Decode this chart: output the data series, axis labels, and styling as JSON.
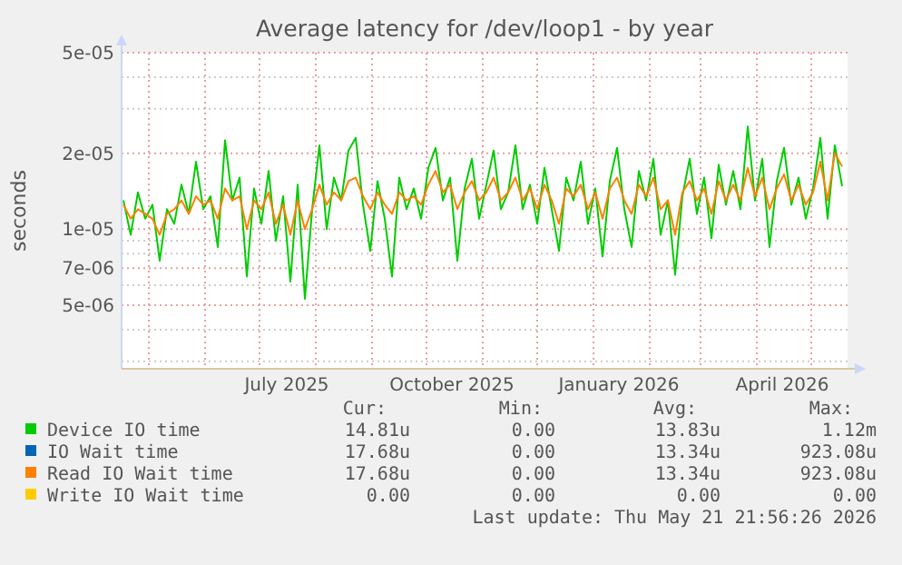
{
  "chart_data": {
    "type": "line",
    "title": "Average latency for /dev/loop1 - by year",
    "ylabel": "seconds",
    "log": "y",
    "grid": true,
    "legend": "bottom",
    "marker": "none",
    "line_style": "solid",
    "xlim": [
      "2025-04-16",
      "2026-05-21"
    ],
    "ylim": [
      2.8e-06,
      5e-05
    ],
    "yticks": [
      {
        "value": 3e-06,
        "label": null
      },
      {
        "value": 4e-06,
        "label": null
      },
      {
        "value": 5e-06,
        "label": "5e-06"
      },
      {
        "value": 6e-06,
        "label": null
      },
      {
        "value": 7e-06,
        "label": "7e-06"
      },
      {
        "value": 8e-06,
        "label": null
      },
      {
        "value": 9e-06,
        "label": null
      },
      {
        "value": 1e-05,
        "label": "1e-05"
      },
      {
        "value": 2e-05,
        "label": "2e-05"
      },
      {
        "value": 3e-05,
        "label": null
      },
      {
        "value": 4e-05,
        "label": null
      },
      {
        "value": 5e-05,
        "label": "5e-05"
      }
    ],
    "xticks": [
      {
        "value": "2025-05-01",
        "label": null
      },
      {
        "value": "2025-06-01",
        "label": null
      },
      {
        "value": "2025-07-01",
        "label": null
      },
      {
        "value": "2025-08-01",
        "label": null
      },
      {
        "value": "2025-09-01",
        "label": null
      },
      {
        "value": "2025-10-01",
        "label": null
      },
      {
        "value": "2025-11-01",
        "label": null
      },
      {
        "value": "2025-12-01",
        "label": null
      },
      {
        "value": "2026-01-01",
        "label": null
      },
      {
        "value": "2026-02-01",
        "label": null
      },
      {
        "value": "2026-03-01",
        "label": null
      },
      {
        "value": "2026-04-01",
        "label": null
      },
      {
        "value": "2026-05-01",
        "label": null
      },
      {
        "value": "2025-07-16",
        "label": "July 2025"
      },
      {
        "value": "2025-10-15",
        "label": "October 2025"
      },
      {
        "value": "2026-01-15",
        "label": "January 2026"
      },
      {
        "value": "2026-04-15",
        "label": "April 2026"
      }
    ],
    "x": [
      "2025-04-17",
      "2025-04-21",
      "2025-04-25",
      "2025-04-29",
      "2025-05-03",
      "2025-05-07",
      "2025-05-11",
      "2025-05-15",
      "2025-05-19",
      "2025-05-23",
      "2025-05-27",
      "2025-05-31",
      "2025-06-04",
      "2025-06-08",
      "2025-06-12",
      "2025-06-16",
      "2025-06-20",
      "2025-06-24",
      "2025-06-28",
      "2025-07-02",
      "2025-07-06",
      "2025-07-10",
      "2025-07-14",
      "2025-07-18",
      "2025-07-22",
      "2025-07-26",
      "2025-07-30",
      "2025-08-03",
      "2025-08-07",
      "2025-08-11",
      "2025-08-15",
      "2025-08-19",
      "2025-08-23",
      "2025-08-27",
      "2025-08-31",
      "2025-09-04",
      "2025-09-08",
      "2025-09-12",
      "2025-09-16",
      "2025-09-20",
      "2025-09-24",
      "2025-09-28",
      "2025-10-02",
      "2025-10-06",
      "2025-10-10",
      "2025-10-14",
      "2025-10-18",
      "2025-10-22",
      "2025-10-26",
      "2025-10-30",
      "2025-11-03",
      "2025-11-07",
      "2025-11-11",
      "2025-11-15",
      "2025-11-19",
      "2025-11-23",
      "2025-11-27",
      "2025-12-01",
      "2025-12-05",
      "2025-12-09",
      "2025-12-13",
      "2025-12-17",
      "2025-12-21",
      "2025-12-25",
      "2025-12-29",
      "2026-01-02",
      "2026-01-06",
      "2026-01-10",
      "2026-01-14",
      "2026-01-18",
      "2026-01-22",
      "2026-01-26",
      "2026-01-30",
      "2026-02-03",
      "2026-02-07",
      "2026-02-11",
      "2026-02-15",
      "2026-02-19",
      "2026-02-23",
      "2026-02-27",
      "2026-03-03",
      "2026-03-07",
      "2026-03-11",
      "2026-03-15",
      "2026-03-19",
      "2026-03-23",
      "2026-03-27",
      "2026-03-31",
      "2026-04-04",
      "2026-04-08",
      "2026-04-12",
      "2026-04-16",
      "2026-04-20",
      "2026-04-24",
      "2026-04-28",
      "2026-05-02",
      "2026-05-06",
      "2026-05-10",
      "2026-05-14",
      "2026-05-18"
    ],
    "series": [
      {
        "name": "Device IO time",
        "color": "#00cc00",
        "values": [
          1.3e-05,
          9.5e-06,
          1.4e-05,
          1.1e-05,
          1.25e-05,
          7.5e-06,
          1.2e-05,
          1.05e-05,
          1.5e-05,
          1.15e-05,
          1.85e-05,
          1.2e-05,
          1.35e-05,
          8.5e-06,
          2.25e-05,
          1.3e-05,
          1.6e-05,
          6.5e-06,
          1.45e-05,
          1.05e-05,
          1.7e-05,
          9e-06,
          1.35e-05,
          6.2e-06,
          1.5e-05,
          5.3e-06,
          1.2e-05,
          2.15e-05,
          1e-05,
          1.6e-05,
          1.3e-05,
          2.05e-05,
          2.3e-05,
          1.25e-05,
          8.2e-06,
          1.55e-05,
          1.1e-05,
          6.5e-06,
          1.6e-05,
          1.2e-05,
          1.45e-05,
          1.1e-05,
          1.75e-05,
          2.1e-05,
          1.3e-05,
          1.6e-05,
          7.5e-06,
          1.45e-05,
          1.9e-05,
          1.1e-05,
          1.5e-05,
          2.05e-05,
          1.2e-05,
          1.4e-05,
          2.15e-05,
          1.2e-05,
          1.5e-05,
          1.05e-05,
          1.75e-05,
          1.2e-05,
          8.2e-06,
          1.6e-05,
          1.3e-05,
          1.85e-05,
          1.05e-05,
          1.45e-05,
          7.8e-06,
          1.55e-05,
          2.1e-05,
          1.2e-05,
          8.5e-06,
          1.7e-05,
          1.3e-05,
          1.9e-05,
          9.5e-06,
          1.3e-05,
          6.6e-06,
          1.35e-05,
          1.9e-05,
          1.15e-05,
          1.6e-05,
          9.2e-06,
          1.8e-05,
          1.25e-05,
          1.7e-05,
          1.2e-05,
          2.55e-05,
          1.3e-05,
          1.9e-05,
          8.5e-06,
          1.55e-05,
          2.1e-05,
          1.25e-05,
          1.6e-05,
          1.1e-05,
          1.45e-05,
          2.3e-05,
          1.1e-05,
          2.15e-05,
          1.48e-05
        ]
      },
      {
        "name": "IO Wait time",
        "color": "#0066b3",
        "values": [
          null,
          null,
          null,
          null,
          null,
          null,
          null,
          null,
          null,
          null,
          null,
          null,
          null,
          null,
          null,
          null,
          null,
          null,
          null,
          null,
          null,
          null,
          null,
          null,
          null,
          null,
          null,
          null,
          null,
          null,
          null,
          null,
          null,
          null,
          null,
          null,
          null,
          null,
          null,
          null,
          null,
          null,
          null,
          null,
          null,
          null,
          null,
          null,
          null,
          null,
          null,
          null,
          null,
          null,
          null,
          null,
          null,
          null,
          null,
          null,
          null,
          null,
          null,
          null,
          null,
          null,
          null,
          null,
          null,
          null,
          null,
          null,
          null,
          null,
          null,
          null,
          null,
          null,
          null,
          null,
          null,
          null,
          null,
          null,
          null,
          null,
          null,
          null,
          null,
          null,
          null,
          null,
          null,
          null,
          null,
          null,
          null,
          null,
          null,
          null
        ]
      },
      {
        "name": "Read IO Wait time",
        "color": "#ff8000",
        "values": [
          1.25e-05,
          1.1e-05,
          1.2e-05,
          1.15e-05,
          1.1e-05,
          9.5e-06,
          1.15e-05,
          1.2e-05,
          1.3e-05,
          1.15e-05,
          1.35e-05,
          1.25e-05,
          1.3e-05,
          1.1e-05,
          1.45e-05,
          1.3e-05,
          1.35e-05,
          1e-05,
          1.3e-05,
          1.2e-05,
          1.4e-05,
          1.05e-05,
          1.25e-05,
          9.5e-06,
          1.3e-05,
          1e-05,
          1.2e-05,
          1.5e-05,
          1.25e-05,
          1.4e-05,
          1.3e-05,
          1.55e-05,
          1.6e-05,
          1.35e-05,
          1.2e-05,
          1.4e-05,
          1.25e-05,
          1.15e-05,
          1.4e-05,
          1.3e-05,
          1.35e-05,
          1.25e-05,
          1.5e-05,
          1.7e-05,
          1.4e-05,
          1.5e-05,
          1.2e-05,
          1.4e-05,
          1.55e-05,
          1.3e-05,
          1.4e-05,
          1.6e-05,
          1.3e-05,
          1.4e-05,
          1.6e-05,
          1.3e-05,
          1.45e-05,
          1.2e-05,
          1.5e-05,
          1.3e-05,
          1.05e-05,
          1.45e-05,
          1.35e-05,
          1.5e-05,
          1.2e-05,
          1.4e-05,
          1.1e-05,
          1.45e-05,
          1.6e-05,
          1.3e-05,
          1.15e-05,
          1.5e-05,
          1.35e-05,
          1.6e-05,
          1.2e-05,
          1.3e-05,
          9.5e-06,
          1.4e-05,
          1.55e-05,
          1.3e-05,
          1.45e-05,
          1.15e-05,
          1.55e-05,
          1.3e-05,
          1.5e-05,
          1.3e-05,
          1.75e-05,
          1.35e-05,
          1.6e-05,
          1.2e-05,
          1.45e-05,
          1.65e-05,
          1.3e-05,
          1.5e-05,
          1.25e-05,
          1.4e-05,
          1.85e-05,
          1.3e-05,
          2e-05,
          1.77e-05
        ]
      },
      {
        "name": "Write IO Wait time",
        "color": "#ffcc00",
        "values": [
          null,
          null,
          null,
          null,
          null,
          null,
          null,
          null,
          null,
          null,
          null,
          null,
          null,
          null,
          null,
          null,
          null,
          null,
          null,
          null,
          null,
          null,
          null,
          null,
          null,
          null,
          null,
          null,
          null,
          null,
          null,
          null,
          null,
          null,
          null,
          null,
          null,
          null,
          null,
          null,
          null,
          null,
          null,
          null,
          null,
          null,
          null,
          null,
          null,
          null,
          null,
          null,
          null,
          null,
          null,
          null,
          null,
          null,
          null,
          null,
          null,
          null,
          null,
          null,
          null,
          null,
          null,
          null,
          null,
          null,
          null,
          null,
          null,
          null,
          null,
          null,
          null,
          null,
          null,
          null,
          null,
          null,
          null,
          null,
          null,
          null,
          null,
          null,
          null,
          null,
          null,
          null,
          null,
          null,
          null,
          null,
          null,
          null,
          null,
          null
        ]
      }
    ],
    "annotations": [
      "Cur:",
      "Min:",
      "Avg:",
      "Max:",
      "14.81u",
      "0.00",
      "13.83u",
      "1.12m",
      "17.68u",
      "0.00",
      "13.34u",
      "923.08u",
      "17.68u",
      "0.00",
      "13.34u",
      "923.08u",
      "0.00",
      "0.00",
      "0.00",
      "0.00",
      "Last update: Thu May 21 21:56:26 2026"
    ]
  }
}
